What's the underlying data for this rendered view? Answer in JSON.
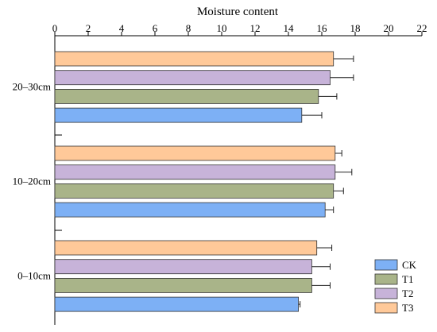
{
  "chart_data": {
    "type": "bar",
    "orientation": "horizontal",
    "title": "Moisture content",
    "xlim": [
      0,
      22
    ],
    "x_ticks": [
      0,
      2,
      4,
      6,
      8,
      10,
      12,
      14,
      16,
      18,
      20,
      22
    ],
    "x_axis_position": "top",
    "categories": [
      "20–30cm",
      "10–20cm",
      "0–10cm"
    ],
    "series": [
      {
        "name": "T3",
        "color": "#FFC999",
        "values": [
          16.7,
          16.8,
          15.7
        ],
        "errors": [
          1.2,
          0.4,
          0.9
        ]
      },
      {
        "name": "T2",
        "color": "#C7B3D9",
        "values": [
          16.5,
          16.8,
          15.4
        ],
        "errors": [
          1.4,
          1.0,
          1.1
        ]
      },
      {
        "name": "T1",
        "color": "#A9B489",
        "values": [
          15.8,
          16.7,
          15.4
        ],
        "errors": [
          1.1,
          0.6,
          1.1
        ]
      },
      {
        "name": "CK",
        "color": "#7DB0F5",
        "values": [
          14.8,
          16.2,
          14.6
        ],
        "errors": [
          1.2,
          0.5,
          0.1
        ]
      }
    ],
    "legend": {
      "placement": "bottom-right",
      "order": [
        "CK",
        "T1",
        "T2",
        "T3"
      ]
    },
    "grid": false
  }
}
